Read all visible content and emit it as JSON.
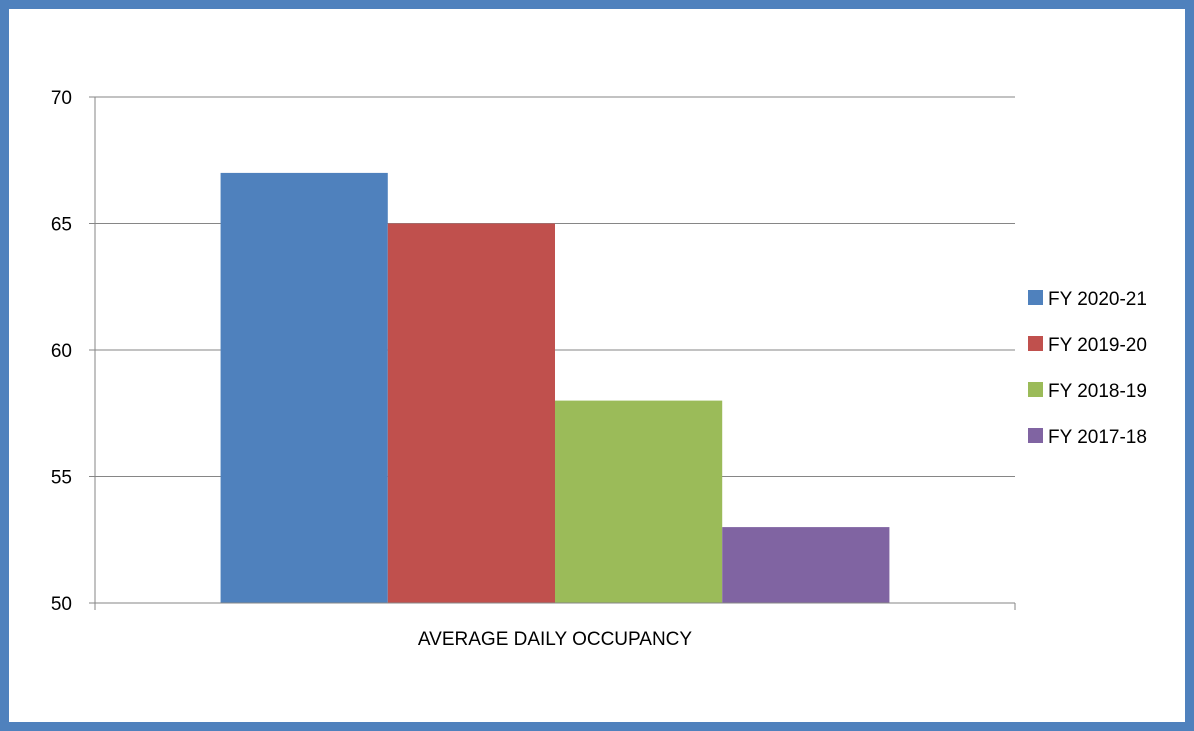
{
  "chart_data": {
    "type": "bar",
    "title": "",
    "xlabel": "",
    "ylabel": "",
    "categories": [
      "AVERAGE DAILY OCCUPANCY"
    ],
    "series": [
      {
        "name": "FY 2020-21",
        "values": [
          67
        ],
        "color": "#4f81bd"
      },
      {
        "name": "FY 2019-20",
        "values": [
          65
        ],
        "color": "#c0504d"
      },
      {
        "name": "FY 2018-19",
        "values": [
          58
        ],
        "color": "#9bbb59"
      },
      {
        "name": "FY 2017-18",
        "values": [
          53
        ],
        "color": "#8064a2"
      }
    ],
    "ylim": [
      50,
      70
    ],
    "yticks": [
      50,
      55,
      60,
      65,
      70
    ],
    "grid": true,
    "legend": "right"
  }
}
